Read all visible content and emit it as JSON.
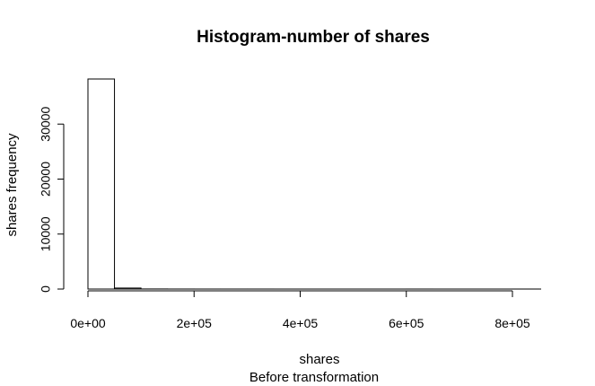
{
  "chart_data": {
    "type": "bar",
    "title": "Histogram-number of shares",
    "xlabel": "shares",
    "ylabel": "shares frequency",
    "subtitle": "Before transformation",
    "bin_width": 50000,
    "bins": [
      {
        "start": 0,
        "end": 50000,
        "count": 38200
      },
      {
        "start": 50000,
        "end": 100000,
        "count": 180
      },
      {
        "start": 100000,
        "end": 150000,
        "count": 15
      },
      {
        "start": 150000,
        "end": 200000,
        "count": 5
      },
      {
        "start": 200000,
        "end": 250000,
        "count": 2
      },
      {
        "start": 250000,
        "end": 300000,
        "count": 1
      },
      {
        "start": 300000,
        "end": 350000,
        "count": 1
      },
      {
        "start": 350000,
        "end": 400000,
        "count": 0
      },
      {
        "start": 400000,
        "end": 450000,
        "count": 0
      },
      {
        "start": 450000,
        "end": 500000,
        "count": 0
      },
      {
        "start": 500000,
        "end": 550000,
        "count": 0
      },
      {
        "start": 550000,
        "end": 600000,
        "count": 0
      },
      {
        "start": 600000,
        "end": 650000,
        "count": 1
      },
      {
        "start": 650000,
        "end": 700000,
        "count": 0
      },
      {
        "start": 700000,
        "end": 750000,
        "count": 0
      },
      {
        "start": 750000,
        "end": 800000,
        "count": 0
      },
      {
        "start": 800000,
        "end": 850000,
        "count": 1
      }
    ],
    "x_ticks": [
      0,
      200000,
      400000,
      600000,
      800000
    ],
    "x_tick_labels": [
      "0e+00",
      "2e+05",
      "4e+05",
      "6e+05",
      "8e+05"
    ],
    "y_ticks": [
      0,
      10000,
      20000,
      30000
    ],
    "y_tick_labels": [
      "0",
      "10000",
      "20000",
      "30000"
    ],
    "xlim": [
      0,
      850000
    ],
    "ylim": [
      0,
      38200
    ],
    "grid": false,
    "bar_fill": "#ffffff",
    "bar_stroke": "#000000"
  }
}
